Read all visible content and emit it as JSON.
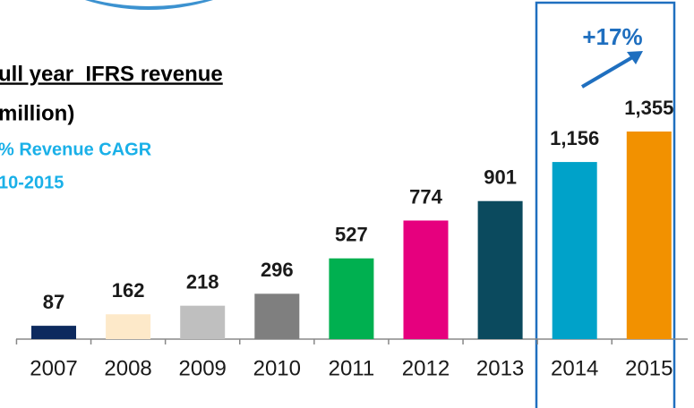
{
  "chart_data": {
    "type": "bar",
    "title": "ull year  IFRS revenue",
    "subtitle": "million)",
    "annotations": [
      "% Revenue CAGR",
      "10-2015",
      "+17%"
    ],
    "categories": [
      "2007",
      "2008",
      "2009",
      "2010",
      "2011",
      "2012",
      "2013",
      "2014",
      "2015"
    ],
    "values": [
      87,
      162,
      218,
      296,
      527,
      774,
      901,
      1156,
      1355
    ],
    "value_labels": [
      "87",
      "162",
      "218",
      "296",
      "527",
      "774",
      "901",
      "1,156",
      "1,355"
    ],
    "colors": [
      "#0d2a5e",
      "#fde9c9",
      "#bfbfbf",
      "#7f7f7f",
      "#00b050",
      "#e6007e",
      "#0b4a5e",
      "#00a2c9",
      "#f29100"
    ]
  }
}
